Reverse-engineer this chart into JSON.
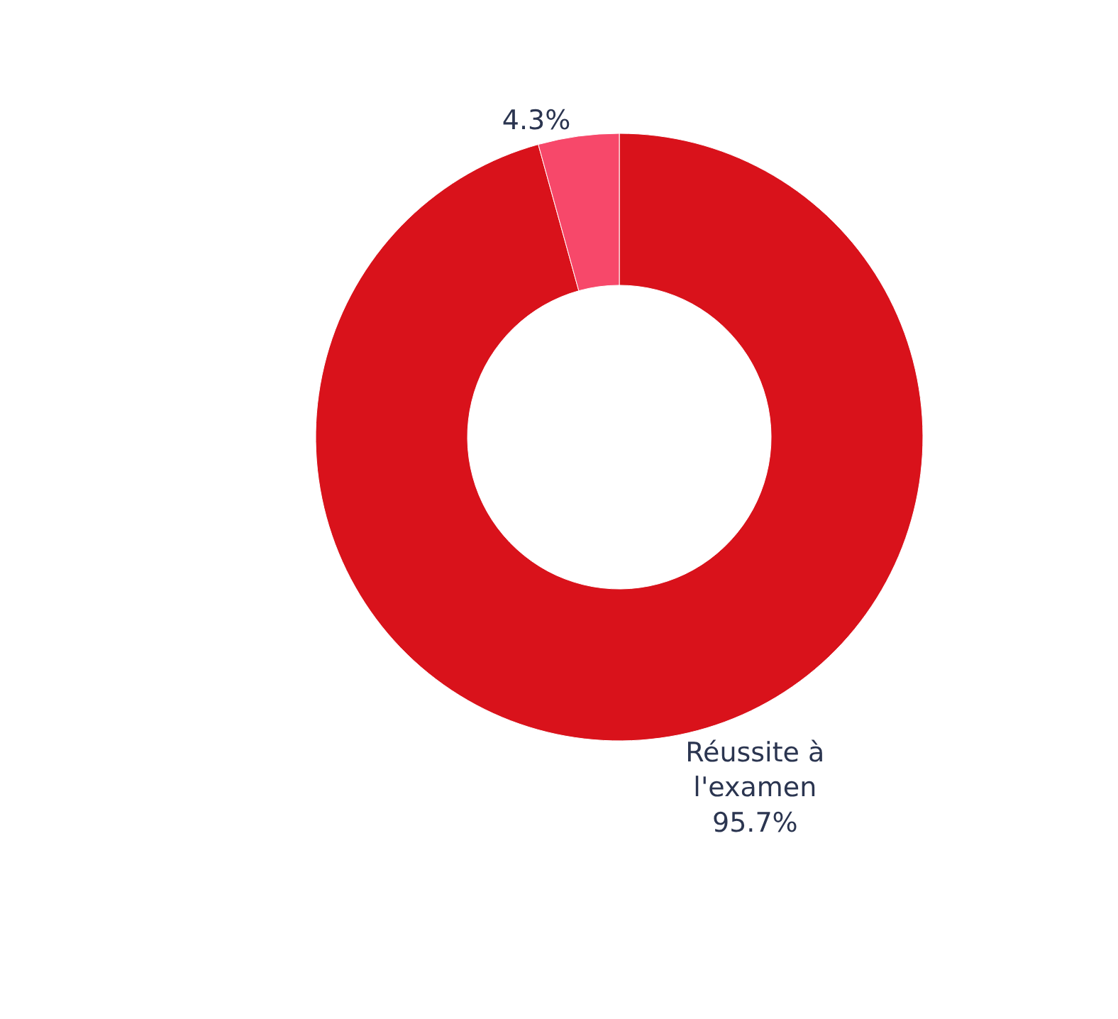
{
  "chart_data": {
    "type": "donut",
    "categories": [
      "Réussite à l'examen",
      null
    ],
    "values": [
      95.7,
      4.3
    ],
    "colors": [
      "#d9121b",
      "#f7486a"
    ],
    "value_labels": [
      "95.7%",
      "4.3%"
    ]
  }
}
